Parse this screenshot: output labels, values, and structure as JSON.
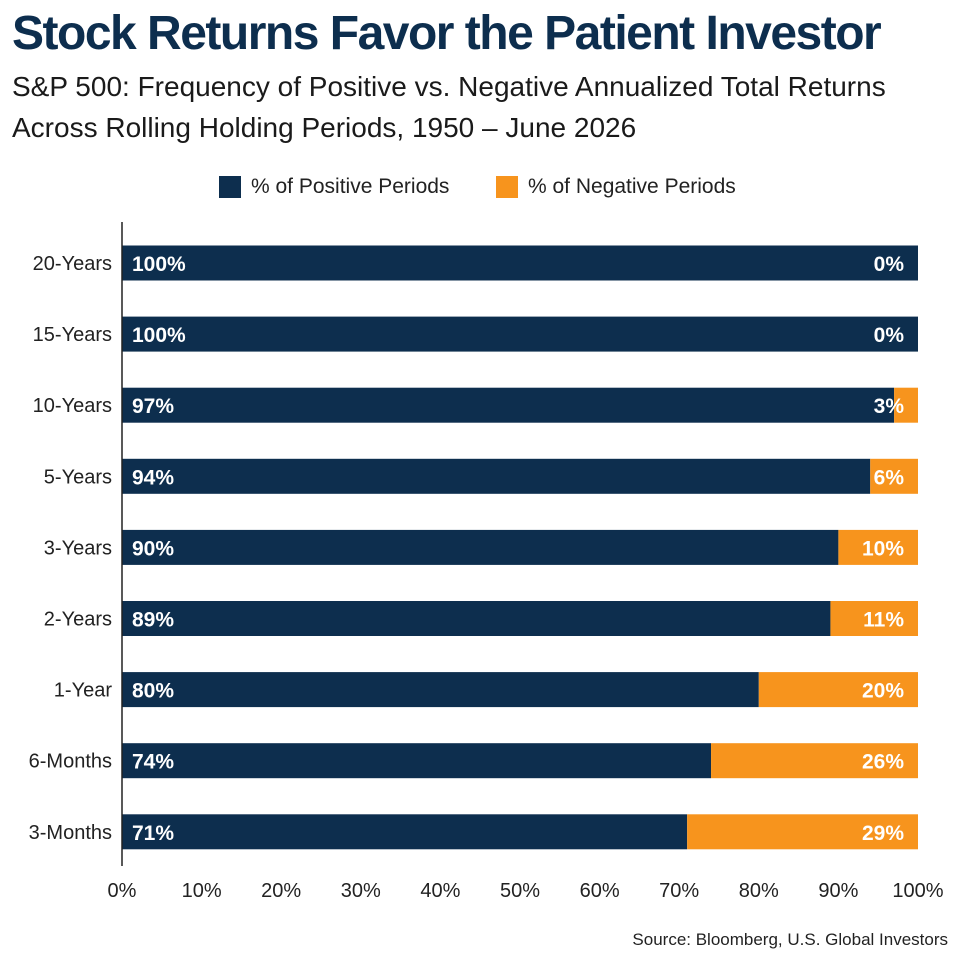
{
  "chart_data": {
    "type": "bar",
    "orientation": "horizontal",
    "stacked": true,
    "title": "Stock Returns Favor the Patient Investor",
    "subtitle_lines": [
      "S&P 500: Frequency of Positive vs. Negative Annualized Total Returns",
      "Across Rolling Holding Periods, 1950 – June 2026"
    ],
    "categories": [
      "20-Years",
      "15-Years",
      "10-Years",
      "5-Years",
      "3-Years",
      "2-Years",
      "1-Year",
      "6-Months",
      "3-Months"
    ],
    "series": [
      {
        "name": "% of Positive Periods",
        "color": "#0d2e4e",
        "values": [
          100,
          100,
          97,
          94,
          90,
          89,
          80,
          74,
          71
        ],
        "labels": [
          "100%",
          "100%",
          "97%",
          "94%",
          "90%",
          "89%",
          "80%",
          "74%",
          "71%"
        ]
      },
      {
        "name": "% of Negative Periods",
        "color": "#f7941d",
        "values": [
          0,
          0,
          3,
          6,
          10,
          11,
          20,
          26,
          29
        ],
        "labels": [
          "0%",
          "0%",
          "3%",
          "6%",
          "10%",
          "11%",
          "20%",
          "26%",
          "29%"
        ]
      }
    ],
    "xlim": [
      0,
      100
    ],
    "xticks": [
      "0%",
      "10%",
      "20%",
      "30%",
      "40%",
      "50%",
      "60%",
      "70%",
      "80%",
      "90%",
      "100%"
    ],
    "grid": false,
    "legend_position": "top-center",
    "source": "Source: Bloomberg, U.S. Global Investors"
  }
}
